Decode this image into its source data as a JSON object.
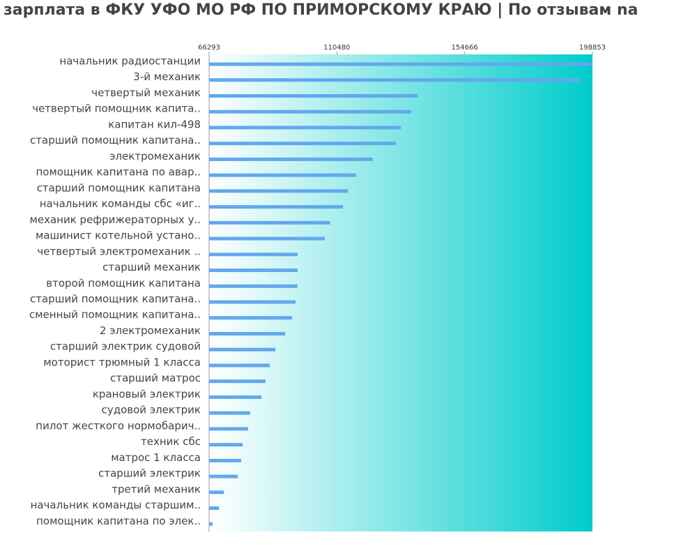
{
  "chart_data": {
    "type": "bar",
    "orientation": "horizontal",
    "title": "зарплата в ФКУ УФО МО РФ ПО ПРИМОРСКОМУ КРАЮ | По отзывам na",
    "categories": [
      "начальник радиостанции",
      "3-й механик",
      "четвертый механик",
      "четвертый помощник капита..",
      "капитан кил-498",
      "старший помощник капитана..",
      "электромеханик",
      "помощник капитана по авар..",
      "старший помощник капитана",
      "начальник команды сбс «иг..",
      "механик рефрижераторных у..",
      "машинист котельной устано..",
      "четвертый электромеханик ..",
      "старший механик",
      "второй помощник капитана",
      "старший помощник капитана..",
      "сменный помощник капитана..",
      "2 электромеханик",
      "старший электрик судовой",
      "моторист трюмный 1 класса",
      "старший матрос",
      "крановый электрик",
      "судовой электрик",
      "пилот жесткого нормобарич..",
      "техник сбс",
      "матрос 1 класса",
      "старший электрик",
      "третий механик",
      "начальник команды старшим..",
      "помощник капитана по элек.."
    ],
    "values": [
      198853,
      194700,
      138400,
      136200,
      132600,
      130900,
      122900,
      117100,
      114300,
      112600,
      108200,
      106300,
      96900,
      96900,
      96900,
      96200,
      95000,
      92600,
      89200,
      87300,
      85800,
      84400,
      80500,
      79800,
      77900,
      77400,
      76200,
      71400,
      69700,
      67500
    ],
    "color": "#62a8ec",
    "xlim": [
      66293,
      198853
    ],
    "xticks": [
      66293,
      110480,
      154666,
      198853
    ]
  }
}
